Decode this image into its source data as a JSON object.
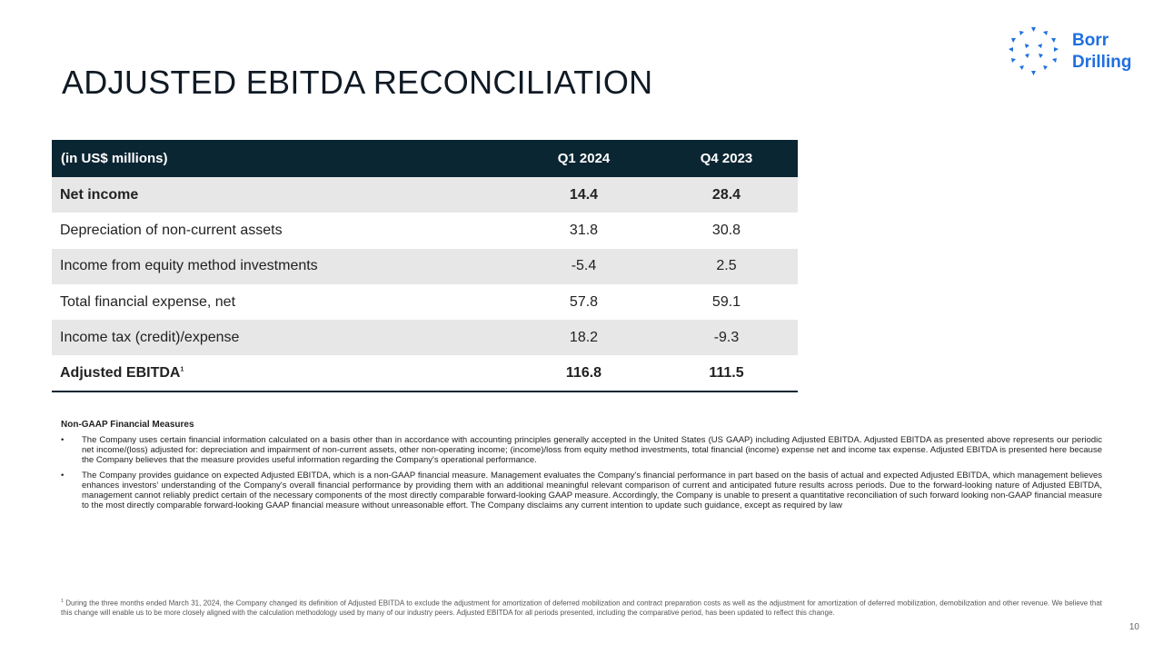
{
  "slide": {
    "title": "ADJUSTED EBITDA RECONCILIATION",
    "page_number": "10"
  },
  "logo": {
    "line1": "Borr",
    "line2": "Drilling",
    "color": "#1f6fe0"
  },
  "table": {
    "headers": [
      "(in US$ millions)",
      "Q1 2024",
      "Q4 2023"
    ],
    "rows": [
      {
        "label": "Net income",
        "q1_2024": "14.4",
        "q4_2023": "28.4"
      },
      {
        "label": "Depreciation of non-current assets",
        "q1_2024": "31.8",
        "q4_2023": "30.8"
      },
      {
        "label": "Income from equity method investments",
        "q1_2024": "-5.4",
        "q4_2023": "2.5"
      },
      {
        "label": "Total financial expense, net",
        "q1_2024": "57.8",
        "q4_2023": "59.1"
      },
      {
        "label": "Income tax (credit)/expense",
        "q1_2024": "18.2",
        "q4_2023": "-9.3"
      },
      {
        "label": "Adjusted EBITDA",
        "footnote_marker": "1",
        "q1_2024": "116.8",
        "q4_2023": "111.5"
      }
    ]
  },
  "notes": {
    "heading": "Non-GAAP Financial Measures",
    "bullet_marker": "•",
    "bullets": [
      "The Company uses certain financial information calculated on a basis other than in accordance with accounting principles generally accepted in the United States (US GAAP) including Adjusted EBITDA. Adjusted EBITDA as presented above represents our periodic net income/(loss) adjusted for: depreciation and impairment of non-current assets, other non-operating income; (income)/loss from equity method investments, total financial (income) expense net and income tax expense. Adjusted EBITDA is presented here because the Company believes that the measure provides useful information regarding the Company's operational performance.",
      "The Company provides guidance on expected Adjusted EBITDA, which is a non-GAAP financial measure. Management evaluates the Company's financial performance in part based on the basis of actual and expected Adjusted EBITDA, which management believes enhances investors' understanding of the Company's overall financial performance by providing them with an additional meaningful relevant comparison of current and anticipated future results across periods. Due to the forward-looking nature of Adjusted EBITDA, management cannot reliably predict certain of the necessary components of the most directly comparable forward-looking GAAP measure. Accordingly, the Company is unable to present a quantitative reconciliation of such forward looking non-GAAP financial measure to the most directly comparable forward-looking GAAP financial measure without unreasonable effort. The Company disclaims any current intention to update such guidance, except as required by law"
    ]
  },
  "footnote": {
    "marker": "1",
    "text": "During the three months ended March 31, 2024, the Company changed its definition of Adjusted EBITDA to exclude the adjustment for amortization of deferred mobilization and contract preparation costs as well as the adjustment for amortization of deferred mobilization, demobilization and other revenue. We believe that this change will enable us to be more closely aligned with the calculation methodology used by many of our industry peers. Adjusted EBITDA for all periods presented, including the comparative period, has been updated to reflect this change."
  }
}
